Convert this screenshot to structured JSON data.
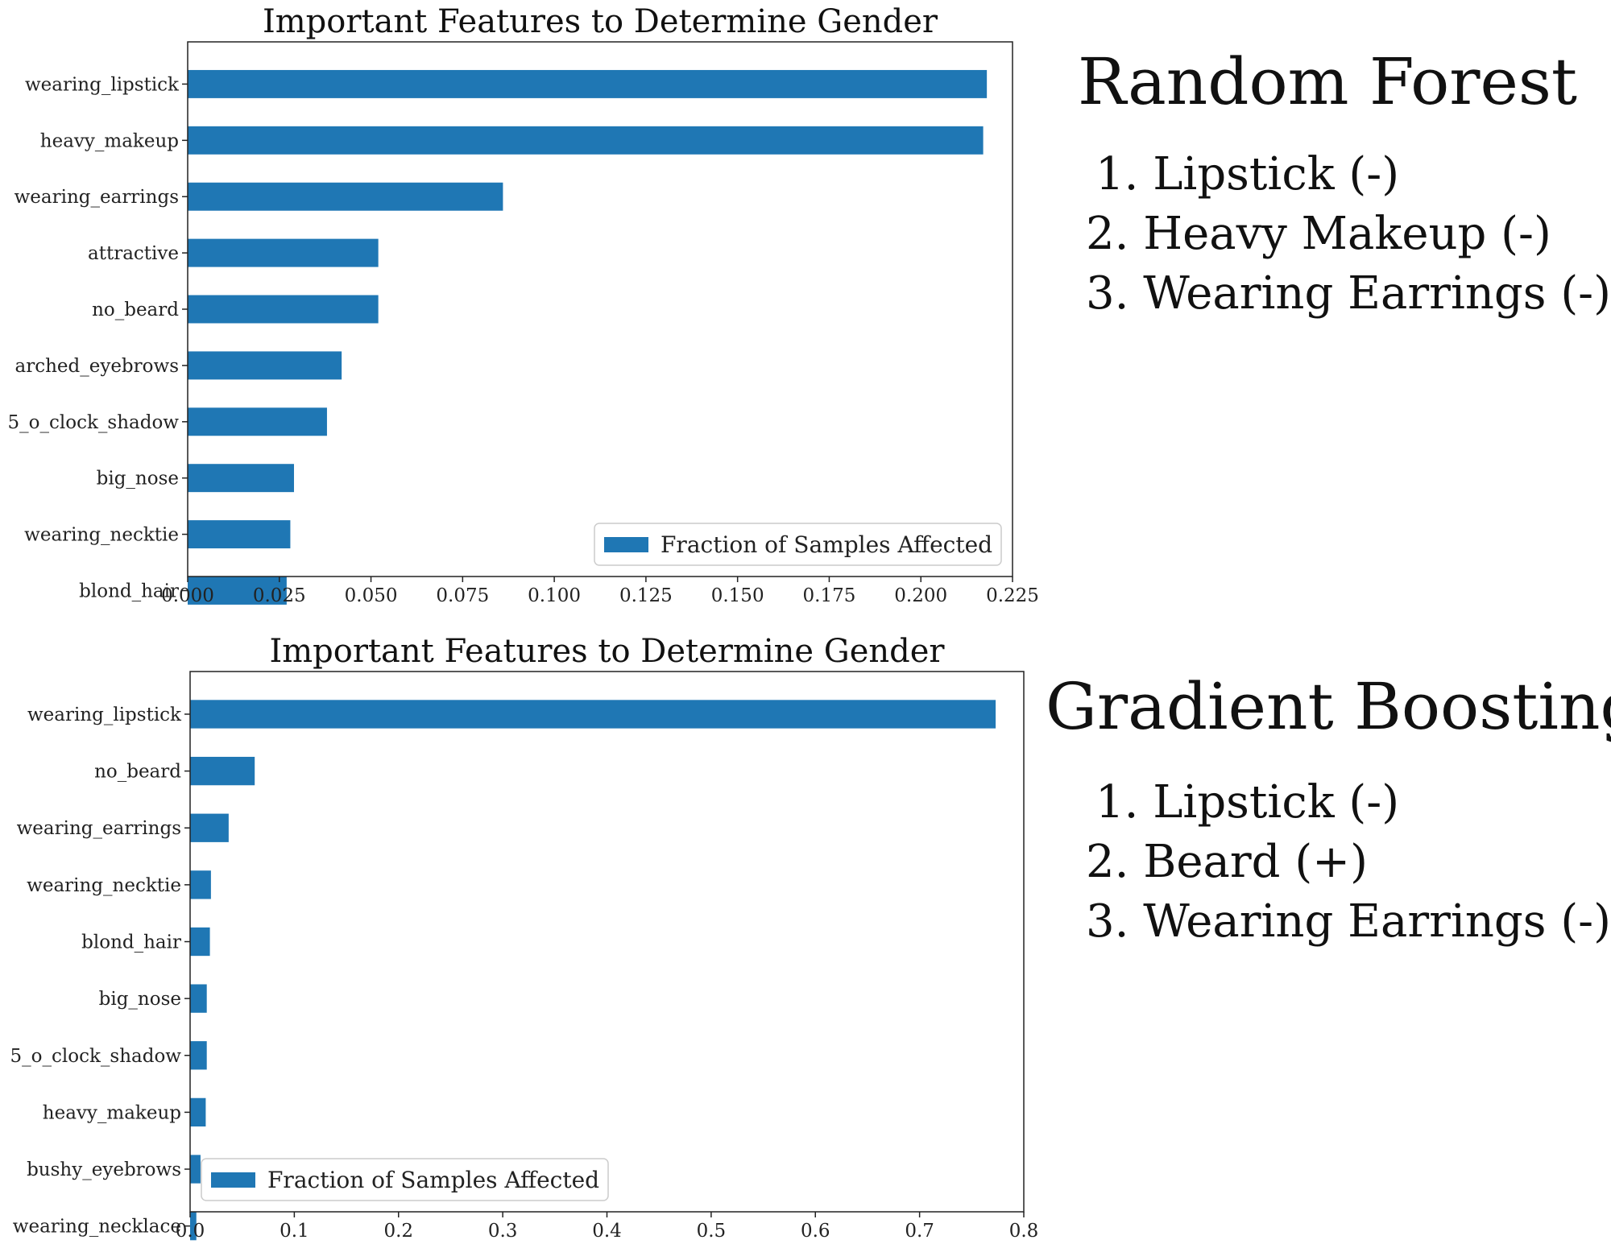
{
  "colors": {
    "bar": "#1f77b4",
    "axis": "#222222",
    "legend_border": "#cccccc"
  },
  "panels": [
    {
      "heading": "Random Forest",
      "items": [
        "1. Lipstick (-)",
        "2. Heavy Makeup (-)",
        "3. Wearing Earrings (-)"
      ]
    },
    {
      "heading": "Gradient Boosting",
      "items": [
        "1. Lipstick (-)",
        "2. Beard (+)",
        "3. Wearing Earrings (-)"
      ]
    }
  ],
  "chart_data": [
    {
      "type": "bar",
      "orientation": "horizontal",
      "title": "Important Features to Determine Gender",
      "xlabel": "",
      "ylabel": "",
      "categories": [
        "wearing_lipstick",
        "heavy_makeup",
        "wearing_earrings",
        "attractive",
        "no_beard",
        "arched_eyebrows",
        "5_o_clock_shadow",
        "big_nose",
        "wearing_necktie",
        "blond_hair"
      ],
      "series": [
        {
          "name": "Fraction of Samples Affected",
          "values": [
            0.218,
            0.217,
            0.086,
            0.052,
            0.052,
            0.042,
            0.038,
            0.029,
            0.028,
            0.027
          ]
        }
      ],
      "xlim": [
        0,
        0.225
      ],
      "xticks": [
        "0.000",
        "0.025",
        "0.050",
        "0.075",
        "0.100",
        "0.125",
        "0.150",
        "0.175",
        "0.200",
        "0.225"
      ],
      "legend": "lower-right",
      "grid": false
    },
    {
      "type": "bar",
      "orientation": "horizontal",
      "title": "Important Features to Determine Gender",
      "xlabel": "",
      "ylabel": "",
      "categories": [
        "wearing_lipstick",
        "no_beard",
        "wearing_earrings",
        "wearing_necktie",
        "blond_hair",
        "big_nose",
        "5_o_clock_shadow",
        "heavy_makeup",
        "bushy_eyebrows",
        "wearing_necklace"
      ],
      "series": [
        {
          "name": "Fraction of Samples Affected",
          "values": [
            0.773,
            0.062,
            0.037,
            0.02,
            0.019,
            0.016,
            0.016,
            0.015,
            0.01,
            0.006
          ]
        }
      ],
      "xlim": [
        0,
        0.8
      ],
      "xticks": [
        "0.0",
        "0.1",
        "0.2",
        "0.3",
        "0.4",
        "0.5",
        "0.6",
        "0.7",
        "0.8"
      ],
      "legend": "lower-left",
      "grid": false
    }
  ]
}
